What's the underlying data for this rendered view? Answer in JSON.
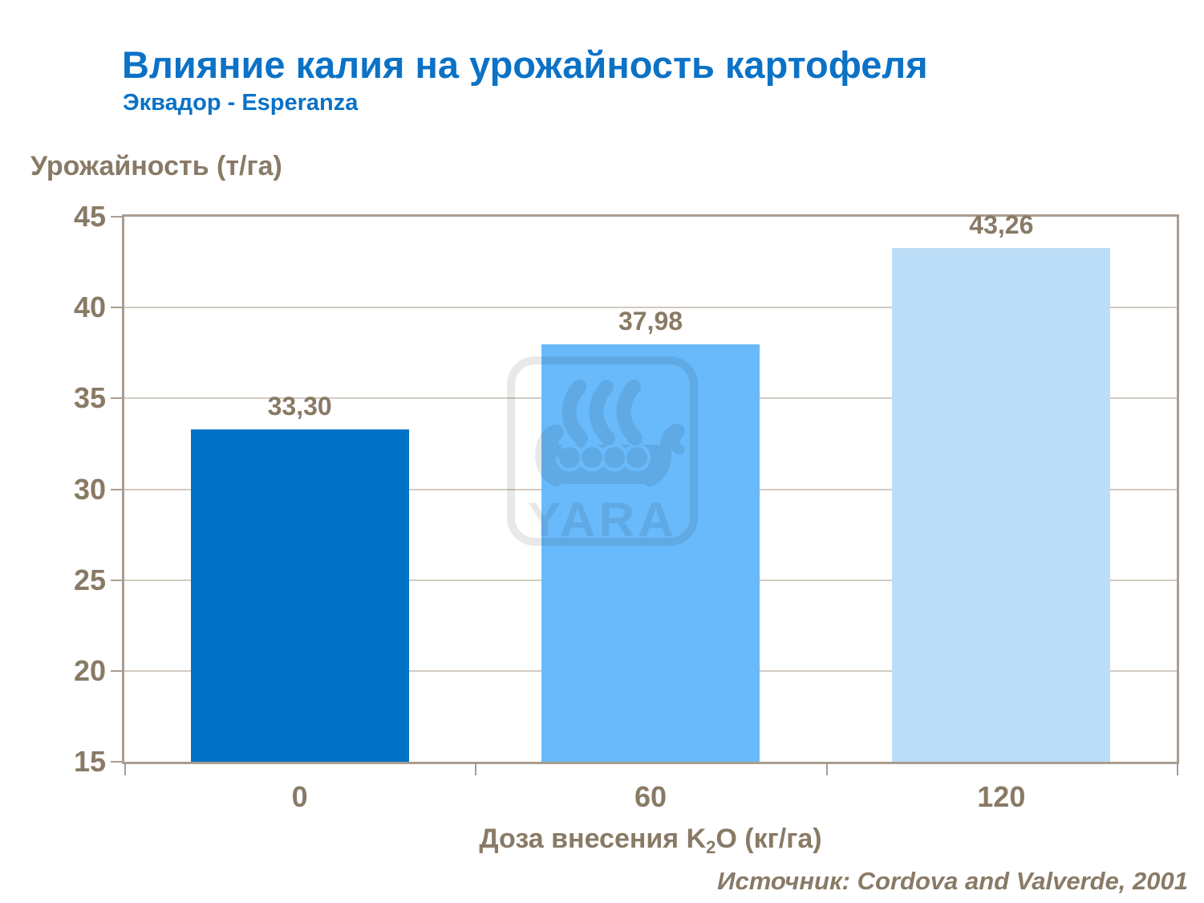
{
  "slide": {
    "title": "Влияние калия на урожайность картофеля",
    "subtitle": "Эквадор - Esperanza",
    "source": "Источник: Cordova and Valverde, 2001"
  },
  "watermark": {
    "brand": "YARA",
    "icon": "yara-viking-ship-logo"
  },
  "chart_data": {
    "type": "bar",
    "title": "Влияние калия на урожайность картофеля",
    "subtitle": "Эквадор - Esperanza",
    "ylabel": "Урожайность (т/га)",
    "xlabel": "Доза внесения K2O (кг/га)",
    "xlabel_parts": {
      "prefix": "Доза внесения K",
      "sub": "2",
      "suffix": "O (кг/га)"
    },
    "categories": [
      "0",
      "60",
      "120"
    ],
    "values": [
      33.3,
      37.98,
      43.26
    ],
    "value_labels": [
      "33,30",
      "37,98",
      "43,26"
    ],
    "ylim": [
      15,
      45
    ],
    "yticks": [
      45,
      40,
      35,
      30,
      25,
      20,
      15
    ],
    "grid": true,
    "legend": false,
    "bar_colors": [
      "#0072C6",
      "#69BAFB",
      "#BBDDF8"
    ],
    "colors": {
      "title": "#0B72C6",
      "text": "#897A66",
      "axis": "#A99D90",
      "grid": "#D2CBC3"
    },
    "source": "Источник: Cordova and Valverde, 2001"
  }
}
